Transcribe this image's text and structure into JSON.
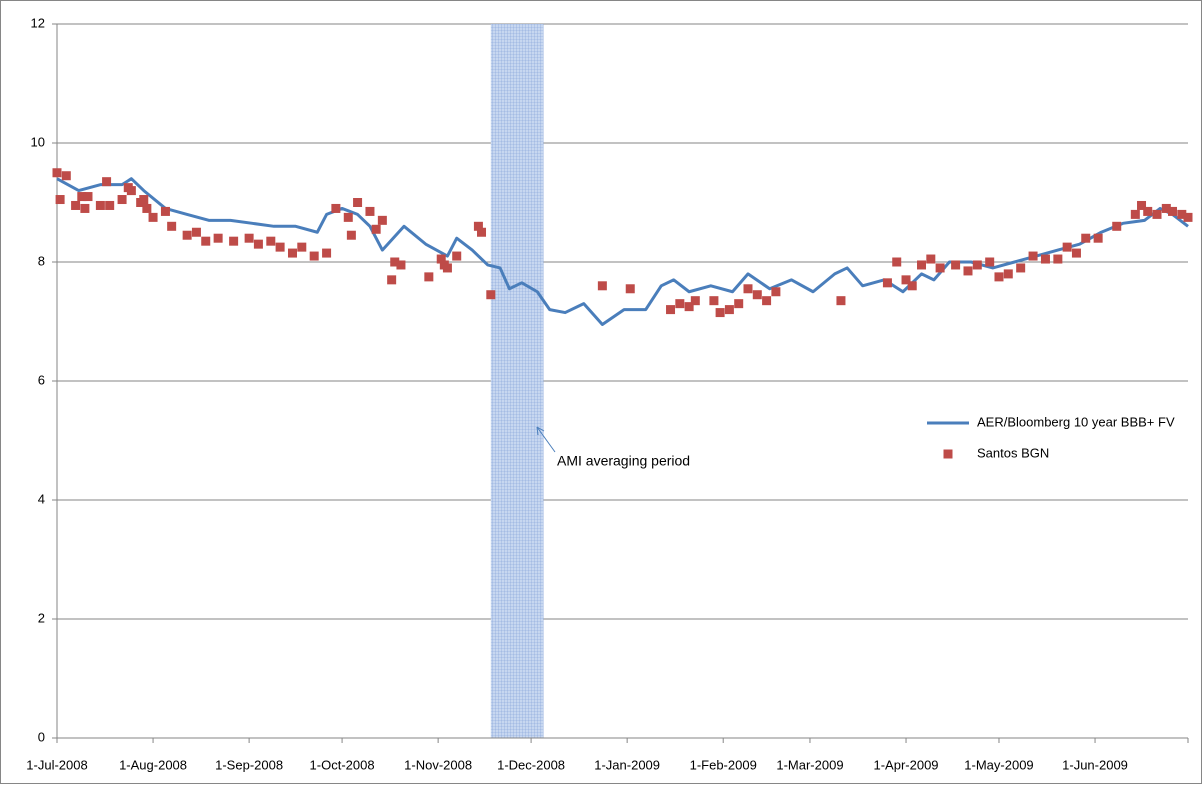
{
  "chart_data": {
    "type": "line",
    "xlim": [
      "2008-07-01",
      "2009-07-01"
    ],
    "xticks": [
      {
        "value": "2008-07-01",
        "label": "1-Jul-2008"
      },
      {
        "value": "2008-08-01",
        "label": "1-Aug-2008"
      },
      {
        "value": "2008-09-01",
        "label": "1-Sep-2008"
      },
      {
        "value": "2008-10-01",
        "label": "1-Oct-2008"
      },
      {
        "value": "2008-11-01",
        "label": "1-Nov-2008"
      },
      {
        "value": "2008-12-01",
        "label": "1-Dec-2008"
      },
      {
        "value": "2009-01-01",
        "label": "1-Jan-2009"
      },
      {
        "value": "2009-02-01",
        "label": "1-Feb-2009"
      },
      {
        "value": "2009-03-01",
        "label": "1-Mar-2009"
      },
      {
        "value": "2009-04-01",
        "label": "1-Apr-2009"
      },
      {
        "value": "2009-05-01",
        "label": "1-May-2009"
      },
      {
        "value": "2009-06-01",
        "label": "1-Jun-2009"
      }
    ],
    "ylim": [
      0,
      12
    ],
    "yticks": [
      0,
      2,
      4,
      6,
      8,
      10,
      12
    ],
    "grid": true,
    "legend": "right",
    "shaded_region": [
      "2008-11-18",
      "2008-12-05"
    ],
    "annotation": "AMI averaging period",
    "series": [
      {
        "name": "AER/Bloomberg 10 year BBB+ FV",
        "type": "line",
        "color": "#4a7ebb",
        "x": [
          "2008-07-01",
          "2008-07-08",
          "2008-07-15",
          "2008-07-22",
          "2008-07-25",
          "2008-07-29",
          "2008-08-05",
          "2008-08-12",
          "2008-08-19",
          "2008-08-26",
          "2008-09-02",
          "2008-09-09",
          "2008-09-16",
          "2008-09-23",
          "2008-09-26",
          "2008-10-01",
          "2008-10-06",
          "2008-10-10",
          "2008-10-14",
          "2008-10-21",
          "2008-10-28",
          "2008-11-04",
          "2008-11-07",
          "2008-11-12",
          "2008-11-17",
          "2008-11-21",
          "2008-11-24",
          "2008-11-28",
          "2008-12-03",
          "2008-12-07",
          "2008-12-12",
          "2008-12-18",
          "2008-12-24",
          "2008-12-31",
          "2009-01-07",
          "2009-01-12",
          "2009-01-16",
          "2009-01-21",
          "2009-01-28",
          "2009-02-04",
          "2009-02-09",
          "2009-02-16",
          "2009-02-23",
          "2009-03-02",
          "2009-03-09",
          "2009-03-13",
          "2009-03-18",
          "2009-03-25",
          "2009-03-31",
          "2009-04-06",
          "2009-04-10",
          "2009-04-15",
          "2009-04-22",
          "2009-04-29",
          "2009-05-06",
          "2009-05-13",
          "2009-05-20",
          "2009-05-27",
          "2009-06-03",
          "2009-06-10",
          "2009-06-17",
          "2009-06-22",
          "2009-06-26",
          "2009-07-01"
        ],
        "values": [
          9.4,
          9.2,
          9.3,
          9.3,
          9.4,
          9.2,
          8.9,
          8.8,
          8.7,
          8.7,
          8.65,
          8.6,
          8.6,
          8.5,
          8.8,
          8.9,
          8.8,
          8.6,
          8.2,
          8.6,
          8.3,
          8.1,
          8.4,
          8.2,
          7.95,
          7.9,
          7.55,
          7.65,
          7.5,
          7.2,
          7.15,
          7.3,
          6.95,
          7.2,
          7.2,
          7.6,
          7.7,
          7.5,
          7.6,
          7.5,
          7.8,
          7.55,
          7.7,
          7.5,
          7.8,
          7.9,
          7.6,
          7.7,
          7.5,
          7.8,
          7.7,
          8.0,
          8.0,
          7.9,
          8.0,
          8.1,
          8.2,
          8.3,
          8.5,
          8.65,
          8.7,
          8.9,
          8.8,
          8.6
        ]
      },
      {
        "name": "Santos BGN",
        "type": "scatter",
        "color": "#be4b48",
        "x": [
          "2008-07-01",
          "2008-07-02",
          "2008-07-04",
          "2008-07-07",
          "2008-07-09",
          "2008-07-10",
          "2008-07-11",
          "2008-07-15",
          "2008-07-17",
          "2008-07-18",
          "2008-07-22",
          "2008-07-24",
          "2008-07-25",
          "2008-07-28",
          "2008-07-29",
          "2008-07-30",
          "2008-08-01",
          "2008-08-05",
          "2008-08-07",
          "2008-08-12",
          "2008-08-15",
          "2008-08-18",
          "2008-08-22",
          "2008-08-27",
          "2008-09-01",
          "2008-09-04",
          "2008-09-08",
          "2008-09-11",
          "2008-09-15",
          "2008-09-18",
          "2008-09-22",
          "2008-09-26",
          "2008-09-29",
          "2008-10-03",
          "2008-10-04",
          "2008-10-06",
          "2008-10-10",
          "2008-10-12",
          "2008-10-14",
          "2008-10-17",
          "2008-10-18",
          "2008-10-20",
          "2008-10-29",
          "2008-11-02",
          "2008-11-03",
          "2008-11-04",
          "2008-11-07",
          "2008-11-14",
          "2008-11-15",
          "2008-11-18",
          "2008-12-24",
          "2009-01-02",
          "2009-01-15",
          "2009-01-18",
          "2009-01-21",
          "2009-01-23",
          "2009-01-29",
          "2009-01-31",
          "2009-02-03",
          "2009-02-06",
          "2009-02-09",
          "2009-02-12",
          "2009-02-15",
          "2009-02-18",
          "2009-03-11",
          "2009-03-26",
          "2009-03-29",
          "2009-04-01",
          "2009-04-03",
          "2009-04-06",
          "2009-04-09",
          "2009-04-12",
          "2009-04-17",
          "2009-04-21",
          "2009-04-24",
          "2009-04-28",
          "2009-05-01",
          "2009-05-04",
          "2009-05-08",
          "2009-05-12",
          "2009-05-16",
          "2009-05-20",
          "2009-05-23",
          "2009-05-26",
          "2009-05-29",
          "2009-06-02",
          "2009-06-08",
          "2009-06-14",
          "2009-06-16",
          "2009-06-18",
          "2009-06-21",
          "2009-06-24",
          "2009-06-26",
          "2009-06-29",
          "2009-07-01"
        ],
        "values": [
          9.5,
          9.05,
          9.45,
          8.95,
          9.1,
          8.9,
          9.1,
          8.95,
          9.35,
          8.95,
          9.05,
          9.25,
          9.2,
          9.0,
          9.05,
          8.9,
          8.75,
          8.85,
          8.6,
          8.45,
          8.5,
          8.35,
          8.4,
          8.35,
          8.4,
          8.3,
          8.35,
          8.25,
          8.15,
          8.25,
          8.1,
          8.15,
          8.9,
          8.75,
          8.45,
          9.0,
          8.85,
          8.55,
          8.7,
          7.7,
          8.0,
          7.95,
          7.75,
          8.05,
          7.95,
          7.9,
          8.1,
          8.6,
          8.5,
          7.45,
          7.6,
          7.55,
          7.2,
          7.3,
          7.25,
          7.35,
          7.35,
          7.15,
          7.2,
          7.3,
          7.55,
          7.45,
          7.35,
          7.5,
          7.35,
          7.65,
          8.0,
          7.7,
          7.6,
          7.95,
          8.05,
          7.9,
          7.95,
          7.85,
          7.95,
          8.0,
          7.75,
          7.8,
          7.9,
          8.1,
          8.05,
          8.05,
          8.25,
          8.15,
          8.4,
          8.4,
          8.6,
          8.8,
          8.95,
          8.85,
          8.8,
          8.9,
          8.85,
          8.8,
          8.75
        ]
      }
    ]
  }
}
